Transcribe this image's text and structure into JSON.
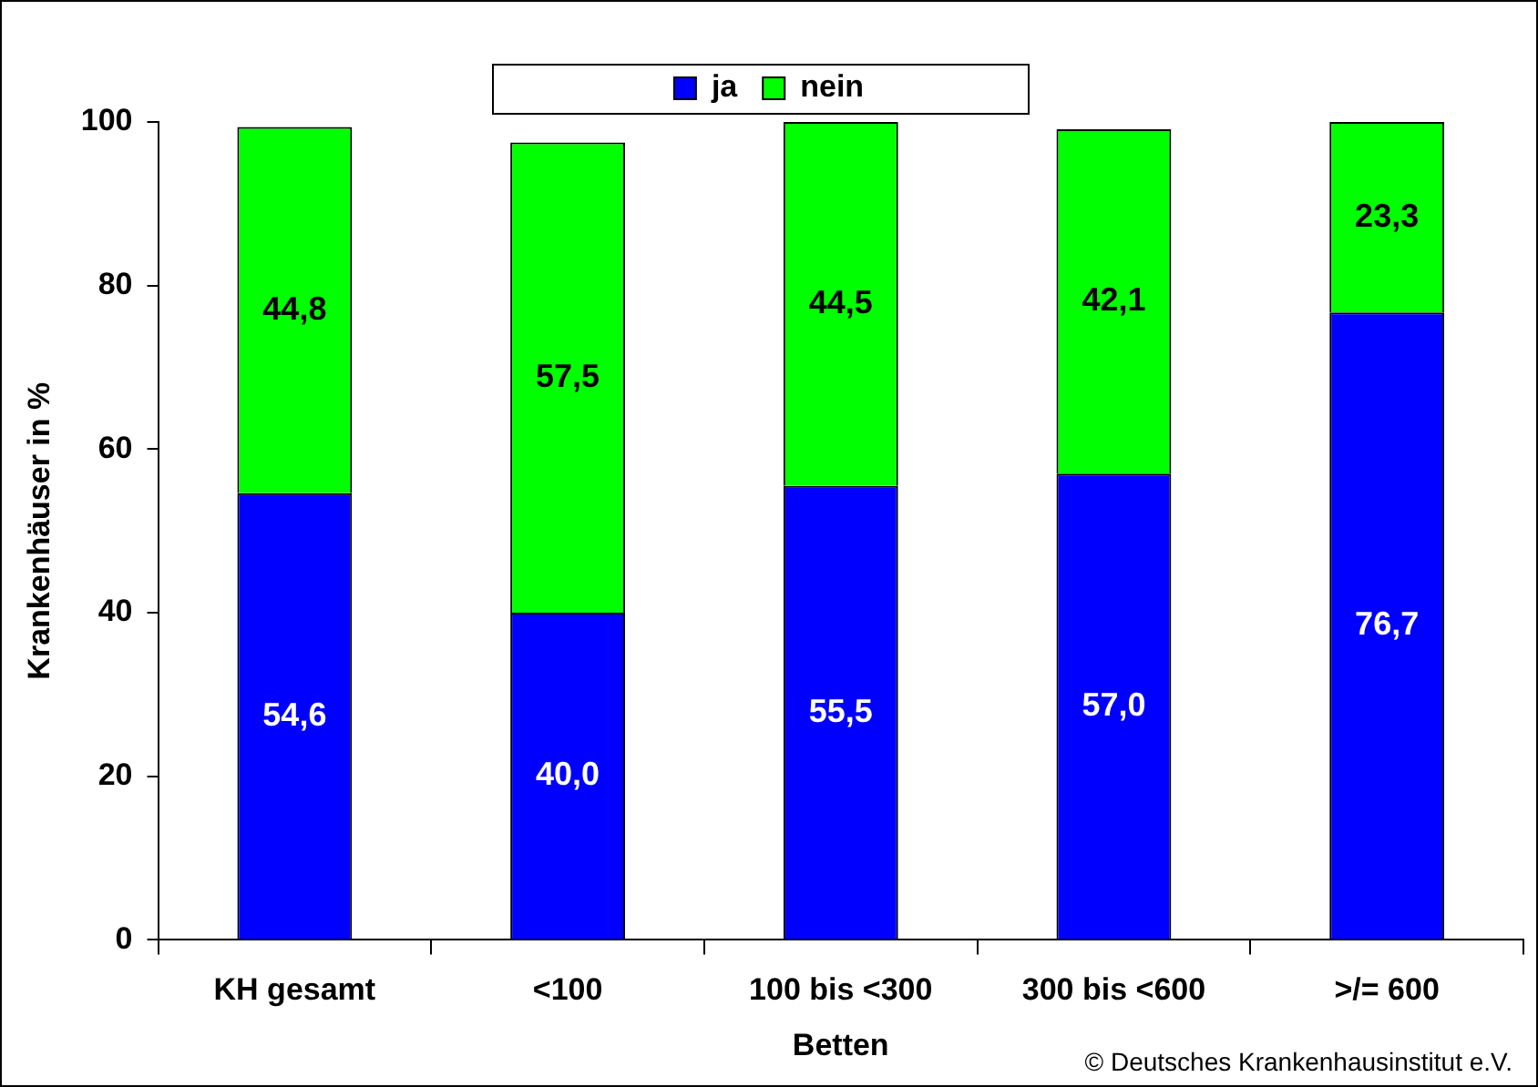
{
  "chart_data": {
    "type": "bar",
    "stacked": true,
    "xlabel": "Betten",
    "ylabel": "Krankenhäuser in %",
    "categories": [
      "KH gesamt",
      "<100",
      "100 bis <300",
      "300 bis <600",
      ">/= 600"
    ],
    "series": [
      {
        "name": "ja",
        "color": "#0000ff",
        "values": [
          54.6,
          40.0,
          55.5,
          57.0,
          76.7
        ],
        "value_labels": [
          "54,6",
          "40,0",
          "55,5",
          "57,0",
          "76,7"
        ]
      },
      {
        "name": "nein",
        "color": "#00ff00",
        "values": [
          44.8,
          57.5,
          44.5,
          42.1,
          23.3
        ],
        "value_labels": [
          "44,8",
          "57,5",
          "44,5",
          "42,1",
          "23,3"
        ]
      }
    ],
    "ylim": [
      0,
      100
    ],
    "yticks": [
      0,
      20,
      40,
      60,
      80,
      100
    ],
    "grid": false,
    "legend": "top",
    "annotations": [
      "© Deutsches Krankenhausinstitut e.V."
    ]
  }
}
